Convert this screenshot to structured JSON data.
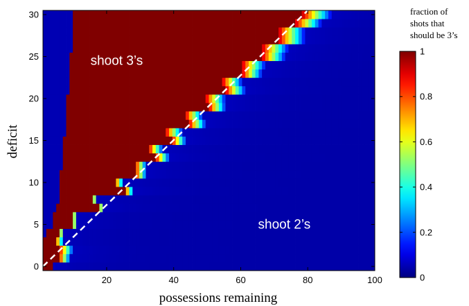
{
  "chart_data": {
    "type": "heatmap",
    "title": "",
    "xlabel": "possessions remaining",
    "ylabel": "deficit",
    "xlim": [
      1,
      100
    ],
    "ylim": [
      0,
      30
    ],
    "xticks": [
      20,
      40,
      60,
      80,
      100
    ],
    "yticks": [
      0,
      5,
      10,
      15,
      20,
      25,
      30
    ],
    "x_tick_labels": [
      "20",
      "40",
      "60",
      "80",
      "100"
    ],
    "y_tick_labels": [
      "0",
      "5",
      "10",
      "15",
      "20",
      "25",
      "30"
    ],
    "colormap": "jet",
    "value_range": [
      0,
      1
    ],
    "colorbar": {
      "title_lines": [
        "fraction of",
        "shots that",
        "should be 3’s"
      ],
      "ticks": [
        0,
        0.2,
        0.4,
        0.6,
        0.8,
        1
      ],
      "tick_labels": [
        "0",
        "0.2",
        "0.4",
        "0.6",
        "0.8",
        "1"
      ]
    },
    "annotations": [
      {
        "text": "shoot 3’s",
        "x": 23,
        "y": 24.5
      },
      {
        "text": "shoot 2’s",
        "x": 73,
        "y": 5
      }
    ],
    "boundary_line": {
      "style": "dashed",
      "color": "#ffffff",
      "x": [
        1,
        80
      ],
      "y": [
        0,
        30.5
      ]
    },
    "rows": [
      {
        "deficit": 0,
        "cutoff": 3,
        "transition_width": 1,
        "left_edge": 0
      },
      {
        "deficit": 1,
        "cutoff": 5,
        "transition_width": 4,
        "left_edge": 0
      },
      {
        "deficit": 2,
        "cutoff": 5,
        "transition_width": 5,
        "left_edge": 0
      },
      {
        "deficit": 3,
        "cutoff": 4,
        "transition_width": 3,
        "left_edge": 0
      },
      {
        "deficit": 4,
        "cutoff": 5,
        "transition_width": 2,
        "left_edge": 1
      },
      {
        "deficit": 5,
        "cutoff": 9,
        "transition_width": 2,
        "left_edge": 3
      },
      {
        "deficit": 6,
        "cutoff": 9,
        "transition_width": 2,
        "left_edge": 3
      },
      {
        "deficit": 7,
        "cutoff": 17,
        "transition_width": 2,
        "left_edge": 4
      },
      {
        "deficit": 8,
        "cutoff": 15,
        "transition_width": 2,
        "left_edge": 5
      },
      {
        "deficit": 9,
        "cutoff": 25,
        "transition_width": 3,
        "left_edge": 5
      },
      {
        "deficit": 10,
        "cutoff": 22,
        "transition_width": 3,
        "left_edge": 5
      },
      {
        "deficit": 11,
        "cutoff": 28,
        "transition_width": 4,
        "left_edge": 5
      },
      {
        "deficit": 12,
        "cutoff": 28,
        "transition_width": 4,
        "left_edge": 6
      },
      {
        "deficit": 13,
        "cutoff": 34,
        "transition_width": 5,
        "left_edge": 6
      },
      {
        "deficit": 14,
        "cutoff": 32,
        "transition_width": 5,
        "left_edge": 6
      },
      {
        "deficit": 15,
        "cutoff": 39,
        "transition_width": 5,
        "left_edge": 6
      },
      {
        "deficit": 16,
        "cutoff": 37,
        "transition_width": 6,
        "left_edge": 7
      },
      {
        "deficit": 17,
        "cutoff": 44,
        "transition_width": 6,
        "left_edge": 7
      },
      {
        "deficit": 18,
        "cutoff": 43,
        "transition_width": 6,
        "left_edge": 7
      },
      {
        "deficit": 19,
        "cutoff": 50,
        "transition_width": 6,
        "left_edge": 7
      },
      {
        "deficit": 20,
        "cutoff": 49,
        "transition_width": 7,
        "left_edge": 7
      },
      {
        "deficit": 21,
        "cutoff": 55,
        "transition_width": 7,
        "left_edge": 8
      },
      {
        "deficit": 22,
        "cutoff": 54,
        "transition_width": 7,
        "left_edge": 8
      },
      {
        "deficit": 23,
        "cutoff": 60,
        "transition_width": 7,
        "left_edge": 8
      },
      {
        "deficit": 24,
        "cutoff": 60,
        "transition_width": 8,
        "left_edge": 8
      },
      {
        "deficit": 25,
        "cutoff": 66,
        "transition_width": 8,
        "left_edge": 8
      },
      {
        "deficit": 26,
        "cutoff": 66,
        "transition_width": 9,
        "left_edge": 9
      },
      {
        "deficit": 27,
        "cutoff": 71,
        "transition_width": 9,
        "left_edge": 9
      },
      {
        "deficit": 28,
        "cutoff": 71,
        "transition_width": 9,
        "left_edge": 9
      },
      {
        "deficit": 29,
        "cutoff": 76,
        "transition_width": 9,
        "left_edge": 9
      },
      {
        "deficit": 30,
        "cutoff": 78,
        "transition_width": 10,
        "left_edge": 9
      }
    ]
  }
}
